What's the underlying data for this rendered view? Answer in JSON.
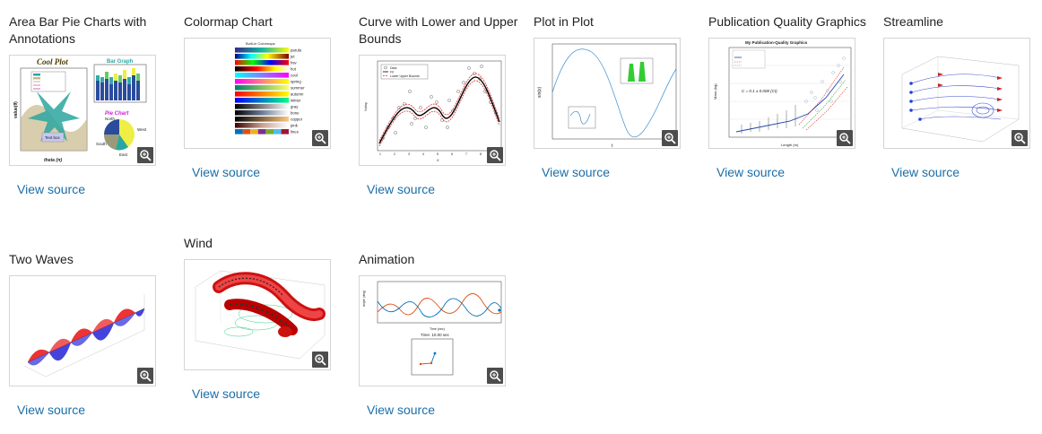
{
  "gallery": {
    "items": [
      {
        "title": "Area Bar Pie Charts with Annotations",
        "link": "View source",
        "thumb": {
          "cool_plot": "Cool Plot",
          "bar_graph": "Bar Graph",
          "pie_chart": "Pie Chart",
          "north": "North",
          "west": "West",
          "south": "South",
          "east": "East",
          "ylabel": "value(θ)",
          "xlabel": "theta (π)",
          "text_box": "Text box",
          "legend": [
            "shal",
            "gl",
            "archi",
            "ambi",
            "fand",
            "princ"
          ]
        }
      },
      {
        "title": "Colormap Chart",
        "link": "View source",
        "thumb": {
          "heading": "Built-in Colormaps",
          "maps": [
            "parula",
            "jet",
            "hsv",
            "hot",
            "cool",
            "spring",
            "summer",
            "autumn",
            "winter",
            "gray",
            "bone",
            "copper",
            "pink",
            "lines"
          ]
        }
      },
      {
        "title": "Curve with Lower and Upper Bounds",
        "link": "View source",
        "thumb": {
          "legend": [
            "Data",
            "Fit",
            "Lower Upper Bounds"
          ],
          "ylabel": "Noisy",
          "xlabel": "X",
          "xticks": [
            "1",
            "2",
            "3",
            "4",
            "5",
            "6",
            "7",
            "8",
            "9"
          ]
        }
      },
      {
        "title": "Plot in Plot",
        "link": "View source",
        "thumb": {
          "ylabel": "sin(x)",
          "xlabel": "t"
        }
      },
      {
        "title": "Publication Quality Graphics",
        "link": "View source",
        "thumb": {
          "heading": "My Publication-Quality Graphics",
          "formula": "C = 0.1 ± 0.008 (CI)",
          "ylabel": "Mass (kg)",
          "xlabel": "Length (m)"
        }
      },
      {
        "title": "Streamline",
        "link": "View source",
        "thumb": {}
      },
      {
        "title": "Two Waves",
        "link": "View source",
        "thumb": {}
      },
      {
        "title": "Wind",
        "link": "View source",
        "thumb": {}
      },
      {
        "title": "Animation",
        "link": "View source",
        "thumb": {
          "time_label": "Time: 10.00 sec",
          "xlabel": "Time (sec)",
          "ylabel": "angle (deg)"
        }
      }
    ]
  }
}
